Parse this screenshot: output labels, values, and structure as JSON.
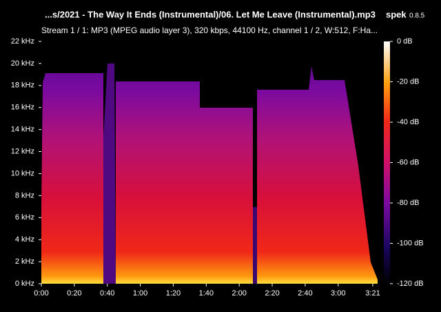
{
  "chart_data": {
    "type": "spectrogram",
    "title": "...s/2021 - The Way It Ends (Instrumental)/06. Let Me Leave (Instrumental).mp3",
    "app_name": "spek",
    "app_version": "0.8.5",
    "subtitle": "Stream 1 / 1: MP3 (MPEG audio layer 3), 320 kbps, 44100 Hz, channel 1 / 2, W:512, F:Ha...",
    "xlim": [
      0,
      201
    ],
    "xticks": [
      {
        "value": 0,
        "label": "0:00"
      },
      {
        "value": 20,
        "label": "0:20"
      },
      {
        "value": 40,
        "label": "0:40"
      },
      {
        "value": 60,
        "label": "1:00"
      },
      {
        "value": 80,
        "label": "1:20"
      },
      {
        "value": 100,
        "label": "1:40"
      },
      {
        "value": 120,
        "label": "2:00"
      },
      {
        "value": 140,
        "label": "2:20"
      },
      {
        "value": 160,
        "label": "2:40"
      },
      {
        "value": 180,
        "label": "3:00"
      },
      {
        "value": 201,
        "label": "3:21"
      }
    ],
    "ylim": [
      0,
      22
    ],
    "yticks": [
      {
        "value": 0,
        "label": "0 kHz"
      },
      {
        "value": 2,
        "label": "2 kHz"
      },
      {
        "value": 4,
        "label": "4 kHz"
      },
      {
        "value": 6,
        "label": "6 kHz"
      },
      {
        "value": 8,
        "label": "8 kHz"
      },
      {
        "value": 10,
        "label": "10 kHz"
      },
      {
        "value": 12,
        "label": "12 kHz"
      },
      {
        "value": 14,
        "label": "14 kHz"
      },
      {
        "value": 16,
        "label": "16 kHz"
      },
      {
        "value": 18,
        "label": "18 kHz"
      },
      {
        "value": 20,
        "label": "20 kHz"
      },
      {
        "value": 22,
        "label": "22 kHz"
      }
    ],
    "colorbar_lim": [
      -120,
      0
    ],
    "colorbar_ticks": [
      {
        "value": 0,
        "label": "0 dB"
      },
      {
        "value": -20,
        "label": "-20 dB"
      },
      {
        "value": -40,
        "label": "-40 dB"
      },
      {
        "value": -60,
        "label": "-60 dB"
      },
      {
        "value": -80,
        "label": "-80 dB"
      },
      {
        "value": -100,
        "label": "-100 dB"
      },
      {
        "value": -120,
        "label": "-120 dB"
      }
    ]
  }
}
